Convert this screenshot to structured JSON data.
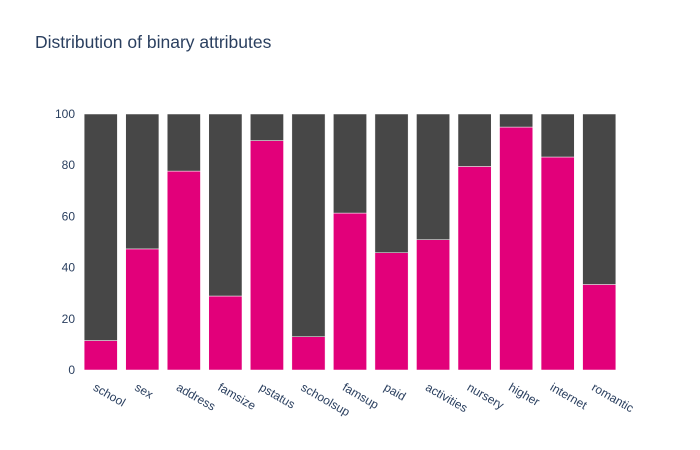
{
  "chart_data": {
    "type": "bar",
    "stacked": true,
    "title": "Distribution of binary attributes",
    "xlabel": "",
    "ylabel": "",
    "categories": [
      "school",
      "sex",
      "address",
      "famsize",
      "pstatus",
      "schoolsup",
      "famsup",
      "paid",
      "activities",
      "nursery",
      "higher",
      "internet",
      "romantic"
    ],
    "series": [
      {
        "color": "#e2007a",
        "values": [
          11.5,
          47.3,
          77.7,
          28.9,
          89.6,
          13.0,
          61.3,
          45.8,
          50.9,
          79.5,
          94.9,
          83.2,
          33.4
        ]
      },
      {
        "color": "#474747",
        "values": [
          88.5,
          52.7,
          22.3,
          71.1,
          10.4,
          87.0,
          38.7,
          54.2,
          49.1,
          20.5,
          5.1,
          16.8,
          66.6
        ]
      }
    ],
    "yticks": [
      0,
      20,
      40,
      60,
      80,
      100
    ],
    "ylim": [
      0,
      100
    ],
    "grid": false,
    "legend": "none"
  }
}
